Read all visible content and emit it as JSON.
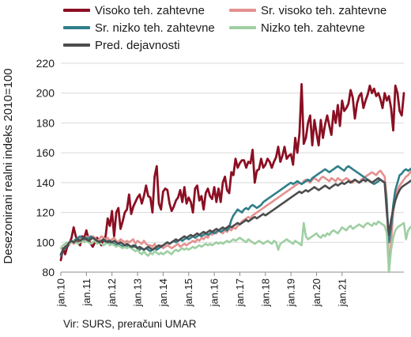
{
  "chart_data": {
    "type": "line",
    "title": "",
    "xlabel": "",
    "ylabel": "Desezonirani realni indeks 2010=100",
    "ylim": [
      80,
      220
    ],
    "yticks": [
      80,
      100,
      120,
      140,
      160,
      180,
      200,
      220
    ],
    "xticks": [
      "jan.10",
      "jan.11",
      "jan.12",
      "jan.13",
      "jan.14",
      "jan.15",
      "jan.16",
      "jan.17",
      "jan.18",
      "jan.19",
      "jan.20",
      "jan.21"
    ],
    "grid": true,
    "legend_position": "top",
    "x_start": "2010-01",
    "x_frequency": "monthly",
    "series": [
      {
        "name": "Visoko teh. zahtevne",
        "color": "#8b0f23",
        "values": [
          88,
          96,
          92,
          97,
          99,
          103,
          110,
          104,
          100,
          98,
          104,
          103,
          108,
          102,
          99,
          97,
          100,
          103,
          101,
          98,
          102,
          104,
          116,
          111,
          121,
          104,
          120,
          123,
          109,
          114,
          120,
          122,
          132,
          119,
          124,
          127,
          130,
          132,
          126,
          131,
          138,
          131,
          130,
          120,
          144,
          151,
          126,
          122,
          134,
          136,
          135,
          126,
          121,
          124,
          128,
          130,
          135,
          127,
          137,
          126,
          130,
          127,
          120,
          136,
          138,
          128,
          131,
          122,
          133,
          136,
          131,
          129,
          137,
          127,
          136,
          127,
          140,
          144,
          135,
          133,
          147,
          145,
          156,
          150,
          153,
          155,
          155,
          150,
          154,
          153,
          162,
          140,
          148,
          149,
          156,
          150,
          152,
          156,
          154,
          150,
          154,
          157,
          164,
          154,
          158,
          164,
          156,
          158,
          159,
          152,
          170,
          160,
          173,
          206,
          166,
          170,
          180,
          185,
          165,
          182,
          173,
          165,
          182,
          170,
          179,
          185,
          178,
          172,
          188,
          180,
          192,
          178,
          195,
          188,
          190,
          193,
          202,
          197,
          183,
          193,
          198,
          200,
          190,
          195,
          199,
          205,
          200,
          203,
          198,
          200,
          196,
          190,
          200,
          195,
          198,
          190,
          175,
          205,
          200,
          188,
          185,
          200
        ]
      },
      {
        "name": "Sr. visoko teh. zahtevne",
        "color": "#e3918f",
        "values": [
          92,
          95,
          97,
          98,
          100,
          101,
          99,
          100,
          102,
          103,
          102,
          101,
          104,
          103,
          102,
          104,
          103,
          101,
          102,
          104,
          103,
          102,
          103,
          101,
          102,
          103,
          101,
          100,
          102,
          101,
          100,
          101,
          100,
          101,
          102,
          99,
          101,
          100,
          99,
          101,
          99,
          98,
          98,
          97,
          99,
          96,
          97,
          98,
          96,
          97,
          98,
          97,
          96,
          97,
          98,
          99,
          97,
          98,
          99,
          98,
          99,
          100,
          101,
          100,
          102,
          101,
          103,
          102,
          104,
          103,
          106,
          105,
          107,
          106,
          108,
          107,
          106,
          108,
          107,
          109,
          108,
          110,
          109,
          111,
          112,
          114,
          115,
          116,
          117,
          116,
          118,
          119,
          120,
          121,
          122,
          123,
          124,
          125,
          126,
          127,
          128,
          129,
          130,
          131,
          132,
          133,
          134,
          135,
          136,
          137,
          138,
          139,
          140,
          139,
          141,
          142,
          141,
          140,
          142,
          143,
          142,
          141,
          143,
          144,
          143,
          142,
          141,
          143,
          142,
          141,
          143,
          142,
          141,
          142,
          143,
          142,
          141,
          140,
          142,
          141,
          140,
          142,
          143,
          144,
          145,
          146,
          147,
          146,
          145,
          147,
          148,
          146,
          144,
          130,
          80,
          100,
          120,
          130,
          135,
          138,
          140,
          142,
          144,
          145,
          147,
          150,
          152,
          150,
          151,
          152,
          150,
          151
        ]
      },
      {
        "name": "Sr. nizko teh. zahtevne",
        "color": "#2f7f89",
        "values": [
          91,
          95,
          96,
          98,
          99,
          100,
          101,
          102,
          103,
          104,
          103,
          102,
          103,
          102,
          104,
          103,
          102,
          101,
          100,
          101,
          102,
          100,
          101,
          99,
          100,
          99,
          98,
          99,
          98,
          97,
          98,
          97,
          98,
          96,
          97,
          98,
          96,
          95,
          96,
          95,
          96,
          95,
          94,
          95,
          96,
          95,
          96,
          97,
          98,
          99,
          100,
          99,
          100,
          101,
          100,
          101,
          102,
          101,
          102,
          103,
          102,
          103,
          104,
          103,
          104,
          105,
          104,
          105,
          106,
          105,
          106,
          107,
          106,
          107,
          108,
          107,
          108,
          109,
          108,
          110,
          115,
          118,
          120,
          122,
          121,
          120,
          122,
          123,
          122,
          124,
          125,
          124,
          123,
          124,
          125,
          127,
          128,
          129,
          130,
          131,
          132,
          133,
          134,
          135,
          136,
          137,
          138,
          139,
          140,
          139,
          140,
          141,
          140,
          139,
          140,
          141,
          142,
          141,
          143,
          144,
          145,
          146,
          147,
          148,
          149,
          148,
          147,
          148,
          149,
          150,
          151,
          150,
          149,
          148,
          150,
          151,
          150,
          149,
          148,
          147,
          146,
          145,
          144,
          143,
          142,
          141,
          140,
          139,
          140,
          141,
          142,
          141,
          140,
          125,
          100,
          110,
          125,
          135,
          140,
          145,
          146,
          148,
          149,
          148,
          149,
          150,
          151,
          150,
          151,
          150,
          151,
          150
        ]
      },
      {
        "name": "Nizko teh. zahtevne",
        "color": "#9fcfa2",
        "values": [
          96,
          98,
          99,
          100,
          99,
          100,
          101,
          100,
          99,
          100,
          101,
          100,
          101,
          100,
          99,
          100,
          101,
          99,
          100,
          99,
          98,
          99,
          100,
          98,
          99,
          98,
          97,
          98,
          97,
          96,
          97,
          96,
          97,
          96,
          95,
          94,
          95,
          93,
          92,
          94,
          92,
          91,
          93,
          92,
          94,
          93,
          92,
          93,
          92,
          93,
          94,
          93,
          92,
          94,
          95,
          94,
          95,
          96,
          95,
          96,
          95,
          96,
          97,
          96,
          97,
          98,
          97,
          98,
          99,
          98,
          99,
          98,
          99,
          100,
          99,
          100,
          99,
          100,
          101,
          100,
          101,
          102,
          101,
          102,
          103,
          102,
          101,
          100,
          102,
          101,
          100,
          99,
          100,
          101,
          100,
          99,
          100,
          101,
          100,
          99,
          101,
          100,
          95,
          99,
          100,
          101,
          102,
          101,
          100,
          99,
          101,
          100,
          99,
          98,
          113,
          104,
          102,
          103,
          104,
          105,
          106,
          104,
          103,
          105,
          104,
          106,
          105,
          107,
          108,
          107,
          106,
          108,
          110,
          109,
          108,
          110,
          111,
          109,
          110,
          111,
          112,
          111,
          110,
          112,
          113,
          112,
          111,
          113,
          112,
          114,
          113,
          112,
          111,
          106,
          80,
          95,
          103,
          108,
          110,
          111,
          112,
          113,
          102,
          108,
          110,
          111,
          112,
          113,
          114,
          114,
          113,
          114
        ]
      },
      {
        "name": "Pred. dejavnosti",
        "color": "#4d4d4d",
        "values": [
          92,
          95,
          97,
          98,
          100,
          101,
          100,
          101,
          102,
          101,
          102,
          103,
          102,
          101,
          102,
          103,
          102,
          101,
          100,
          101,
          102,
          101,
          100,
          101,
          100,
          101,
          100,
          99,
          100,
          99,
          98,
          99,
          98,
          97,
          98,
          97,
          96,
          97,
          96,
          95,
          96,
          97,
          96,
          95,
          96,
          97,
          98,
          97,
          98,
          99,
          100,
          99,
          100,
          101,
          102,
          101,
          102,
          103,
          104,
          103,
          104,
          105,
          104,
          105,
          106,
          105,
          106,
          107,
          106,
          107,
          108,
          107,
          108,
          109,
          108,
          109,
          110,
          109,
          110,
          111,
          110,
          111,
          112,
          113,
          112,
          113,
          114,
          115,
          114,
          115,
          116,
          117,
          116,
          117,
          118,
          119,
          118,
          119,
          120,
          121,
          122,
          123,
          124,
          125,
          126,
          127,
          128,
          129,
          130,
          131,
          132,
          133,
          134,
          133,
          134,
          135,
          134,
          135,
          136,
          137,
          136,
          135,
          136,
          137,
          138,
          137,
          136,
          137,
          138,
          139,
          138,
          139,
          140,
          139,
          140,
          141,
          140,
          141,
          142,
          141,
          140,
          141,
          142,
          141,
          142,
          141,
          140,
          141,
          142,
          143,
          142,
          141,
          140,
          120,
          105,
          115,
          122,
          128,
          132,
          135,
          137,
          138,
          139,
          140,
          141,
          142,
          143,
          142,
          143,
          144,
          145,
          145
        ]
      }
    ]
  },
  "source_note": "Vir: SURS, preračuni UMAR"
}
